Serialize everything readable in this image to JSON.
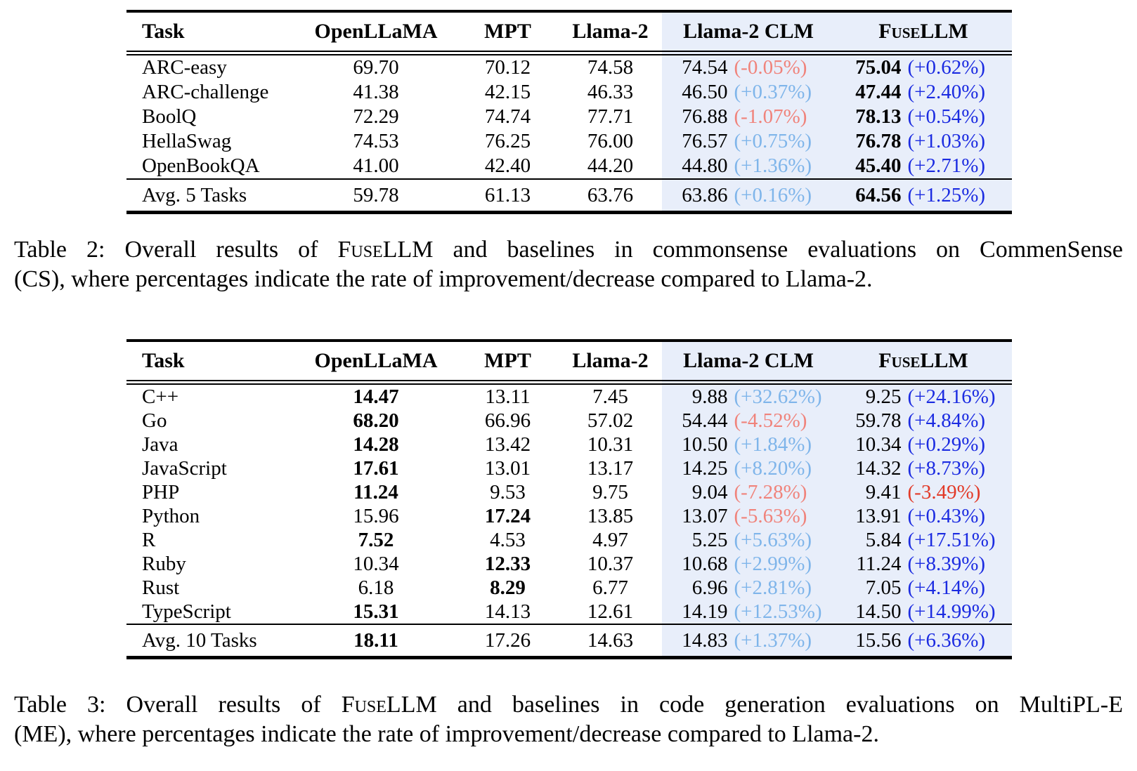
{
  "colors": {
    "band": "#E8EEFA",
    "up_light": "#7FB5EA",
    "down_light": "#F0837B",
    "up_strong": "#1B2BE1",
    "down_strong": "#E23A28"
  },
  "tables": [
    {
      "id": "table2",
      "headers": {
        "task": "Task",
        "openllama": "OpenLLaMA",
        "mpt": "MPT",
        "llama2": "Llama-2",
        "clm": "Llama-2 CLM",
        "fusellm": "FuseLLM"
      },
      "rows": [
        {
          "task": "ARC-easy",
          "cells": [
            {
              "t": "69.70"
            },
            {
              "t": "70.12"
            },
            {
              "t": "74.58"
            }
          ],
          "clm": {
            "v": "74.54",
            "p": "(-0.05%)",
            "tone": "down_light"
          },
          "fuse": {
            "v": "75.04",
            "b": true,
            "p": "(+0.62%)",
            "tone": "up_strong"
          }
        },
        {
          "task": "ARC-challenge",
          "cells": [
            {
              "t": "41.38"
            },
            {
              "t": "42.15"
            },
            {
              "t": "46.33"
            }
          ],
          "clm": {
            "v": "46.50",
            "p": "(+0.37%)",
            "tone": "up_light"
          },
          "fuse": {
            "v": "47.44",
            "b": true,
            "p": "(+2.40%)",
            "tone": "up_strong"
          }
        },
        {
          "task": "BoolQ",
          "cells": [
            {
              "t": "72.29"
            },
            {
              "t": "74.74"
            },
            {
              "t": "77.71"
            }
          ],
          "clm": {
            "v": "76.88",
            "p": "(-1.07%)",
            "tone": "down_light"
          },
          "fuse": {
            "v": "78.13",
            "b": true,
            "p": "(+0.54%)",
            "tone": "up_strong"
          }
        },
        {
          "task": "HellaSwag",
          "cells": [
            {
              "t": "74.53"
            },
            {
              "t": "76.25"
            },
            {
              "t": "76.00"
            }
          ],
          "clm": {
            "v": "76.57",
            "p": "(+0.75%)",
            "tone": "up_light"
          },
          "fuse": {
            "v": "76.78",
            "b": true,
            "p": "(+1.03%)",
            "tone": "up_strong"
          }
        },
        {
          "task": "OpenBookQA",
          "cells": [
            {
              "t": "41.00"
            },
            {
              "t": "42.40"
            },
            {
              "t": "44.20"
            }
          ],
          "clm": {
            "v": "44.80",
            "p": "(+1.36%)",
            "tone": "up_light"
          },
          "fuse": {
            "v": "45.40",
            "b": true,
            "p": "(+2.71%)",
            "tone": "up_strong"
          }
        }
      ],
      "avg": {
        "task": "Avg. 5 Tasks",
        "cells": [
          {
            "t": "59.78"
          },
          {
            "t": "61.13"
          },
          {
            "t": "63.76"
          }
        ],
        "clm": {
          "v": "63.86",
          "p": "(+0.16%)",
          "tone": "up_light"
        },
        "fuse": {
          "v": "64.56",
          "b": true,
          "p": "(+1.25%)",
          "tone": "up_strong"
        }
      },
      "caption": {
        "line1_prefix": "Table 2: Overall results of ",
        "line1_brand": "FuseLLM",
        "line1_suffix": " and baselines in commonsense evaluations on CommenSense",
        "line2": "(CS), where percentages indicate the rate of improvement/decrease compared to Llama-2."
      }
    },
    {
      "id": "table3",
      "headers": {
        "task": "Task",
        "openllama": "OpenLLaMA",
        "mpt": "MPT",
        "llama2": "Llama-2",
        "clm": "Llama-2 CLM",
        "fusellm": "FuseLLM"
      },
      "rows": [
        {
          "task": "C++",
          "cells": [
            {
              "t": "14.47",
              "b": true
            },
            {
              "t": "13.11"
            },
            {
              "t": "7.45"
            }
          ],
          "clm": {
            "v": "9.88",
            "p": "(+32.62%)",
            "tone": "up_light"
          },
          "fuse": {
            "v": "9.25",
            "p": "(+24.16%)",
            "tone": "up_strong"
          }
        },
        {
          "task": "Go",
          "cells": [
            {
              "t": "68.20",
              "b": true
            },
            {
              "t": "66.96"
            },
            {
              "t": "57.02"
            }
          ],
          "clm": {
            "v": "54.44",
            "p": "(-4.52%)",
            "tone": "down_light"
          },
          "fuse": {
            "v": "59.78",
            "p": "(+4.84%)",
            "tone": "up_strong"
          }
        },
        {
          "task": "Java",
          "cells": [
            {
              "t": "14.28",
              "b": true
            },
            {
              "t": "13.42"
            },
            {
              "t": "10.31"
            }
          ],
          "clm": {
            "v": "10.50",
            "p": "(+1.84%)",
            "tone": "up_light"
          },
          "fuse": {
            "v": "10.34",
            "p": "(+0.29%)",
            "tone": "up_strong"
          }
        },
        {
          "task": "JavaScript",
          "cells": [
            {
              "t": "17.61",
              "b": true
            },
            {
              "t": "13.01"
            },
            {
              "t": "13.17"
            }
          ],
          "clm": {
            "v": "14.25",
            "p": "(+8.20%)",
            "tone": "up_light"
          },
          "fuse": {
            "v": "14.32",
            "p": "(+8.73%)",
            "tone": "up_strong"
          }
        },
        {
          "task": "PHP",
          "cells": [
            {
              "t": "11.24",
              "b": true
            },
            {
              "t": "9.53"
            },
            {
              "t": "9.75"
            }
          ],
          "clm": {
            "v": "9.04",
            "p": "(-7.28%)",
            "tone": "down_light"
          },
          "fuse": {
            "v": "9.41",
            "p": "(-3.49%)",
            "tone": "down_strong"
          }
        },
        {
          "task": "Python",
          "cells": [
            {
              "t": "15.96"
            },
            {
              "t": "17.24",
              "b": true
            },
            {
              "t": "13.85"
            }
          ],
          "clm": {
            "v": "13.07",
            "p": "(-5.63%)",
            "tone": "down_light"
          },
          "fuse": {
            "v": "13.91",
            "p": "(+0.43%)",
            "tone": "up_strong"
          }
        },
        {
          "task": "R",
          "cells": [
            {
              "t": "7.52",
              "b": true
            },
            {
              "t": "4.53"
            },
            {
              "t": "4.97"
            }
          ],
          "clm": {
            "v": "5.25",
            "p": "(+5.63%)",
            "tone": "up_light"
          },
          "fuse": {
            "v": "5.84",
            "p": "(+17.51%)",
            "tone": "up_strong"
          }
        },
        {
          "task": "Ruby",
          "cells": [
            {
              "t": "10.34"
            },
            {
              "t": "12.33",
              "b": true
            },
            {
              "t": "10.37"
            }
          ],
          "clm": {
            "v": "10.68",
            "p": "(+2.99%)",
            "tone": "up_light"
          },
          "fuse": {
            "v": "11.24",
            "p": "(+8.39%)",
            "tone": "up_strong"
          }
        },
        {
          "task": "Rust",
          "cells": [
            {
              "t": "6.18"
            },
            {
              "t": "8.29",
              "b": true
            },
            {
              "t": "6.77"
            }
          ],
          "clm": {
            "v": "6.96",
            "p": "(+2.81%)",
            "tone": "up_light"
          },
          "fuse": {
            "v": "7.05",
            "p": "(+4.14%)",
            "tone": "up_strong"
          }
        },
        {
          "task": "TypeScript",
          "cells": [
            {
              "t": "15.31",
              "b": true
            },
            {
              "t": "14.13"
            },
            {
              "t": "12.61"
            }
          ],
          "clm": {
            "v": "14.19",
            "p": "(+12.53%)",
            "tone": "up_light"
          },
          "fuse": {
            "v": "14.50",
            "p": "(+14.99%)",
            "tone": "up_strong"
          }
        }
      ],
      "avg": {
        "task": "Avg. 10 Tasks",
        "cells": [
          {
            "t": "18.11",
            "b": true
          },
          {
            "t": "17.26"
          },
          {
            "t": "14.63"
          }
        ],
        "clm": {
          "v": "14.83",
          "p": "(+1.37%)",
          "tone": "up_light"
        },
        "fuse": {
          "v": "15.56",
          "p": "(+6.36%)",
          "tone": "up_strong"
        }
      },
      "caption": {
        "line1_prefix": "Table 3: Overall results of ",
        "line1_brand": "FuseLLM",
        "line1_suffix": " and baselines in code generation evaluations on MultiPL-E",
        "line2": "(ME), where percentages indicate the rate of improvement/decrease compared to Llama-2."
      }
    }
  ]
}
